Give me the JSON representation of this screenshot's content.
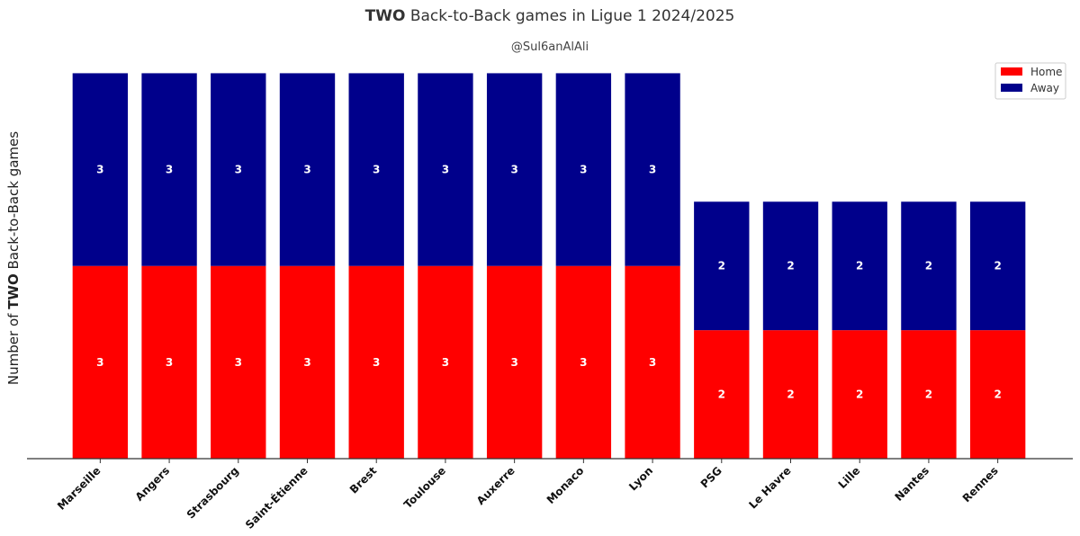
{
  "chart_data": {
    "type": "bar",
    "stacked": true,
    "title_bold": "TWO",
    "title_rest": " Back-to-Back games in Ligue 1 2024/2025",
    "subtitle": "@Sul6anAlAli",
    "ylabel_prefix": "Number of ",
    "ylabel_bold": "TWO",
    "ylabel_suffix": " Back-to-Back games",
    "xlabel": "",
    "ylim": [
      0,
      6.3
    ],
    "grid": false,
    "legend_position": "top-right",
    "categories": [
      "Marseille",
      "Angers",
      "Strasbourg",
      "Saint-Étienne",
      "Brest",
      "Toulouse",
      "Auxerre",
      "Monaco",
      "Lyon",
      "PSG",
      "Le Havre",
      "Lille",
      "Nantes",
      "Rennes"
    ],
    "series": [
      {
        "name": "Home",
        "color": "#ff0000",
        "values": [
          3,
          3,
          3,
          3,
          3,
          3,
          3,
          3,
          3,
          2,
          2,
          2,
          2,
          2
        ]
      },
      {
        "name": "Away",
        "color": "#00008b",
        "values": [
          3,
          3,
          3,
          3,
          3,
          3,
          3,
          3,
          3,
          2,
          2,
          2,
          2,
          2
        ]
      }
    ]
  }
}
